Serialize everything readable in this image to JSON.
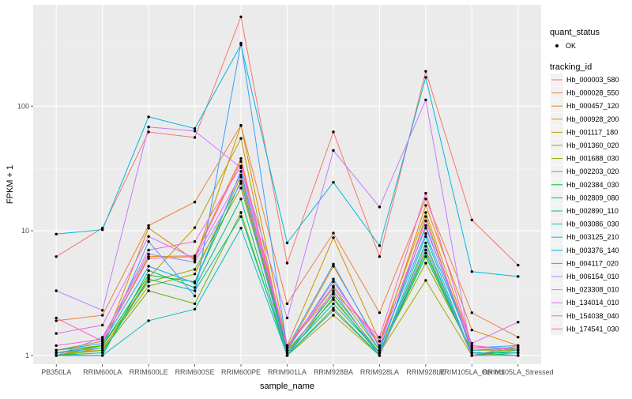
{
  "chart_data": {
    "type": "line",
    "title": "",
    "xlabel": "sample_name",
    "ylabel": "FPKM + 1",
    "y_scale": "log10",
    "ylim": [
      0.85,
      650
    ],
    "y_ticks": [
      {
        "value": 1,
        "label": "1"
      },
      {
        "value": 10,
        "label": "10"
      },
      {
        "value": 100,
        "label": "100"
      }
    ],
    "grid": true,
    "legend_position": "right",
    "categories": [
      "PB350LA",
      "RRIM600LA",
      "RRIM600LE",
      "RRIM600SE",
      "RRIM600PE",
      "RRIM901LA",
      "RRIM928BA",
      "RRIM928LA",
      "RRIM928LE",
      "RRIM105LA_Control",
      "RRIM105LA_Stressed"
    ],
    "shape_legend": {
      "title": "quant_status",
      "items": [
        "OK"
      ]
    },
    "color_legend_title": "tracking_id",
    "series": [
      {
        "name": "Hb_000003_580",
        "color": "#F8766D",
        "values": [
          6.2,
          10.5,
          62,
          56,
          520,
          5.5,
          62,
          6.2,
          190,
          12.2,
          5.3
        ]
      },
      {
        "name": "Hb_000028_550",
        "color": "#EF7F3F",
        "values": [
          1.9,
          2.1,
          11,
          17,
          70,
          2.6,
          9.6,
          2.2,
          18,
          2.2,
          1.4
        ]
      },
      {
        "name": "Hb_000457_120",
        "color": "#E38900",
        "values": [
          1.1,
          1.3,
          6.2,
          6.3,
          38,
          1.1,
          5.2,
          1.2,
          16,
          1.6,
          1.2
        ]
      },
      {
        "name": "Hb_000928_200",
        "color": "#D39200",
        "values": [
          1.0,
          1.2,
          10.5,
          5.8,
          70,
          1.2,
          8.8,
          1.3,
          14,
          1.2,
          1.1
        ]
      },
      {
        "name": "Hb_001117_180",
        "color": "#C09B00",
        "values": [
          1.05,
          1.1,
          4.2,
          10.6,
          55,
          1.0,
          2.1,
          1.0,
          13,
          1.05,
          1.0
        ]
      },
      {
        "name": "Hb_001360_020",
        "color": "#A9A400",
        "values": [
          1.0,
          1.15,
          3.6,
          4.5,
          27,
          1.1,
          2.8,
          1.05,
          4.0,
          1.0,
          1.05
        ]
      },
      {
        "name": "Hb_001688_030",
        "color": "#8EAB00",
        "values": [
          1.1,
          1.2,
          3.9,
          4.9,
          22,
          1.15,
          3.5,
          1.1,
          5.5,
          1.1,
          1.1
        ]
      },
      {
        "name": "Hb_002203_020",
        "color": "#6BB100",
        "values": [
          1.0,
          1.1,
          3.3,
          2.6,
          14,
          1.0,
          2.4,
          1.0,
          7.0,
          1.0,
          1.15
        ]
      },
      {
        "name": "Hb_002384_030",
        "color": "#00BA38",
        "values": [
          1.05,
          1.2,
          4.4,
          3.9,
          25,
          1.05,
          3.1,
          1.05,
          6.2,
          1.05,
          1.0
        ]
      },
      {
        "name": "Hb_002809_080",
        "color": "#00BE6C",
        "values": [
          1.0,
          1.0,
          4.8,
          3.5,
          18,
          1.0,
          2.9,
          1.0,
          8.0,
          1.0,
          1.1
        ]
      },
      {
        "name": "Hb_002890_110",
        "color": "#00BF97",
        "values": [
          1.0,
          1.05,
          4.1,
          3.3,
          13,
          1.05,
          2.6,
          1.05,
          6.6,
          1.05,
          1.05
        ]
      },
      {
        "name": "Hb_003086_030",
        "color": "#00BEBD",
        "values": [
          1.0,
          1.0,
          1.9,
          2.35,
          10.5,
          1.0,
          2.3,
          1.0,
          9.0,
          1.0,
          1.0
        ]
      },
      {
        "name": "Hb_003125_210",
        "color": "#00BADE",
        "values": [
          9.4,
          10.2,
          82,
          66,
          310,
          8.0,
          24.5,
          7.6,
          170,
          4.7,
          4.3
        ]
      },
      {
        "name": "Hb_003376_140",
        "color": "#00B0F6",
        "values": [
          1.1,
          1.25,
          5.2,
          3.8,
          30,
          1.1,
          4.1,
          1.1,
          11,
          1.1,
          1.15
        ]
      },
      {
        "name": "Hb_004117_020",
        "color": "#35A2FF",
        "values": [
          1.05,
          1.15,
          8.2,
          3.0,
          320,
          1.15,
          5.4,
          1.15,
          9.5,
          1.15,
          1.2
        ]
      },
      {
        "name": "Hb_006154_010",
        "color": "#9590FF",
        "values": [
          1.0,
          1.4,
          6.5,
          5.6,
          24,
          1.0,
          3.3,
          1.0,
          7.5,
          1.0,
          1.0
        ]
      },
      {
        "name": "Hb_023308_010",
        "color": "#C77CFF",
        "values": [
          3.3,
          2.3,
          68,
          63,
          32,
          2.0,
          44,
          15.5,
          112,
          1.0,
          1.2
        ]
      },
      {
        "name": "Hb_134014_010",
        "color": "#E76BF3",
        "values": [
          1.5,
          1.75,
          9.0,
          6.0,
          28,
          1.2,
          3.6,
          1.3,
          10.5,
          1.25,
          1.85
        ]
      },
      {
        "name": "Hb_154038_040",
        "color": "#FA62DB",
        "values": [
          1.2,
          1.35,
          7.0,
          8.2,
          33,
          1.15,
          3.9,
          1.2,
          12,
          1.15,
          1.15
        ]
      },
      {
        "name": "Hb_174541_030",
        "color": "#FF62BC",
        "values": [
          2.0,
          1.3,
          6.0,
          6.2,
          36,
          1.2,
          3.2,
          1.4,
          20,
          1.2,
          1.1
        ]
      }
    ]
  }
}
